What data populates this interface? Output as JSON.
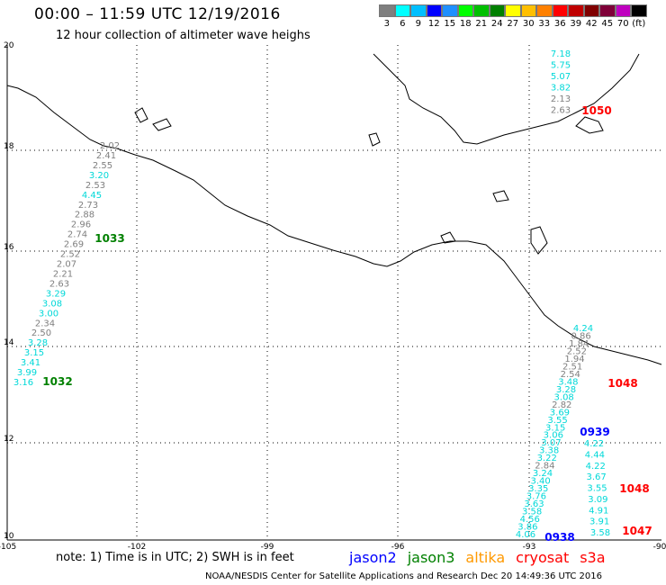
{
  "title": "00:00 – 11:59 UTC 12/19/2016",
  "subtitle": "12 hour collection of altimeter wave heighs",
  "legend": {
    "colors": [
      "#7f7f7f",
      "#00ffff",
      "#00bfff",
      "#0000ff",
      "#1f8fff",
      "#00ff00",
      "#00bf00",
      "#008000",
      "#ffff00",
      "#ffbf00",
      "#ff8000",
      "#ff0000",
      "#bf0000",
      "#800000",
      "#7f0038",
      "#bf00bf",
      "#000000"
    ],
    "labels": [
      "3",
      "6",
      "9",
      "12",
      "15",
      "18",
      "21",
      "24",
      "27",
      "30",
      "33",
      "36",
      "39",
      "42",
      "45",
      "70",
      "(ft)"
    ]
  },
  "axes": {
    "x_ticks": [
      "-105",
      "-102",
      "-99",
      "-96",
      "-93",
      "-90"
    ],
    "y_ticks": [
      "20",
      "18",
      "16",
      "14",
      "12",
      "10"
    ]
  },
  "tracks": {
    "track_west": [
      "2.02",
      "2.41",
      "2.55",
      "3.20",
      "2.53",
      "4.45",
      "2.73",
      "2.88",
      "2.96",
      "2.74",
      "2.69",
      "2.52",
      "2.07",
      "2.21",
      "2.63",
      "3.29",
      "3.08",
      "3.00",
      "2.34",
      "2.50",
      "3.28",
      "3.15",
      "3.41",
      "3.99",
      "3.16"
    ],
    "track_ne": [
      "7.18",
      "5.75",
      "5.07",
      "3.82",
      "2.13",
      "2.63"
    ],
    "track_se_a": [
      "4.24",
      "0.86",
      "1.84",
      "2.52",
      "1.94",
      "2.51",
      "2.54",
      "3.48",
      "3.28",
      "3.08",
      "2.82",
      "3.69",
      "3.55",
      "3.15",
      "3.06",
      "3.07",
      "3.38",
      "3.22",
      "2.84",
      "3.24",
      "3.40",
      "3.35",
      "3.76",
      "3.63",
      "3.58",
      "4.56",
      "3.86",
      "4.06"
    ],
    "track_se_b": [
      "4.22",
      "4.44",
      "4.22",
      "3.67",
      "3.55",
      "3.09",
      "4.91",
      "3.91",
      "3.58"
    ]
  },
  "time_labels": [
    {
      "text": "1033",
      "color": "#008000"
    },
    {
      "text": "1032",
      "color": "#008000"
    },
    {
      "text": "1050",
      "color": "#ff0000"
    },
    {
      "text": "1048",
      "color": "#ff0000"
    },
    {
      "text": "0939",
      "color": "#0000ff"
    },
    {
      "text": "1048",
      "color": "#ff0000"
    },
    {
      "text": "1047",
      "color": "#ff0000"
    },
    {
      "text": "0938",
      "color": "#0000ff"
    }
  ],
  "footer": {
    "note": "note: 1) Time is in UTC; 2) SWH is in feet",
    "satellites": [
      {
        "name": "jason2",
        "color": "#0000ff"
      },
      {
        "name": "jason3",
        "color": "#008000"
      },
      {
        "name": "altika",
        "color": "#ff9900"
      },
      {
        "name": "cryosat",
        "color": "#ff0000"
      },
      {
        "name": "s3a",
        "color": "#ff0000"
      }
    ],
    "credit": "NOAA/NESDIS Center for Satellite Applications and Research    Dec 20 14:49:36 UTC 2016"
  }
}
